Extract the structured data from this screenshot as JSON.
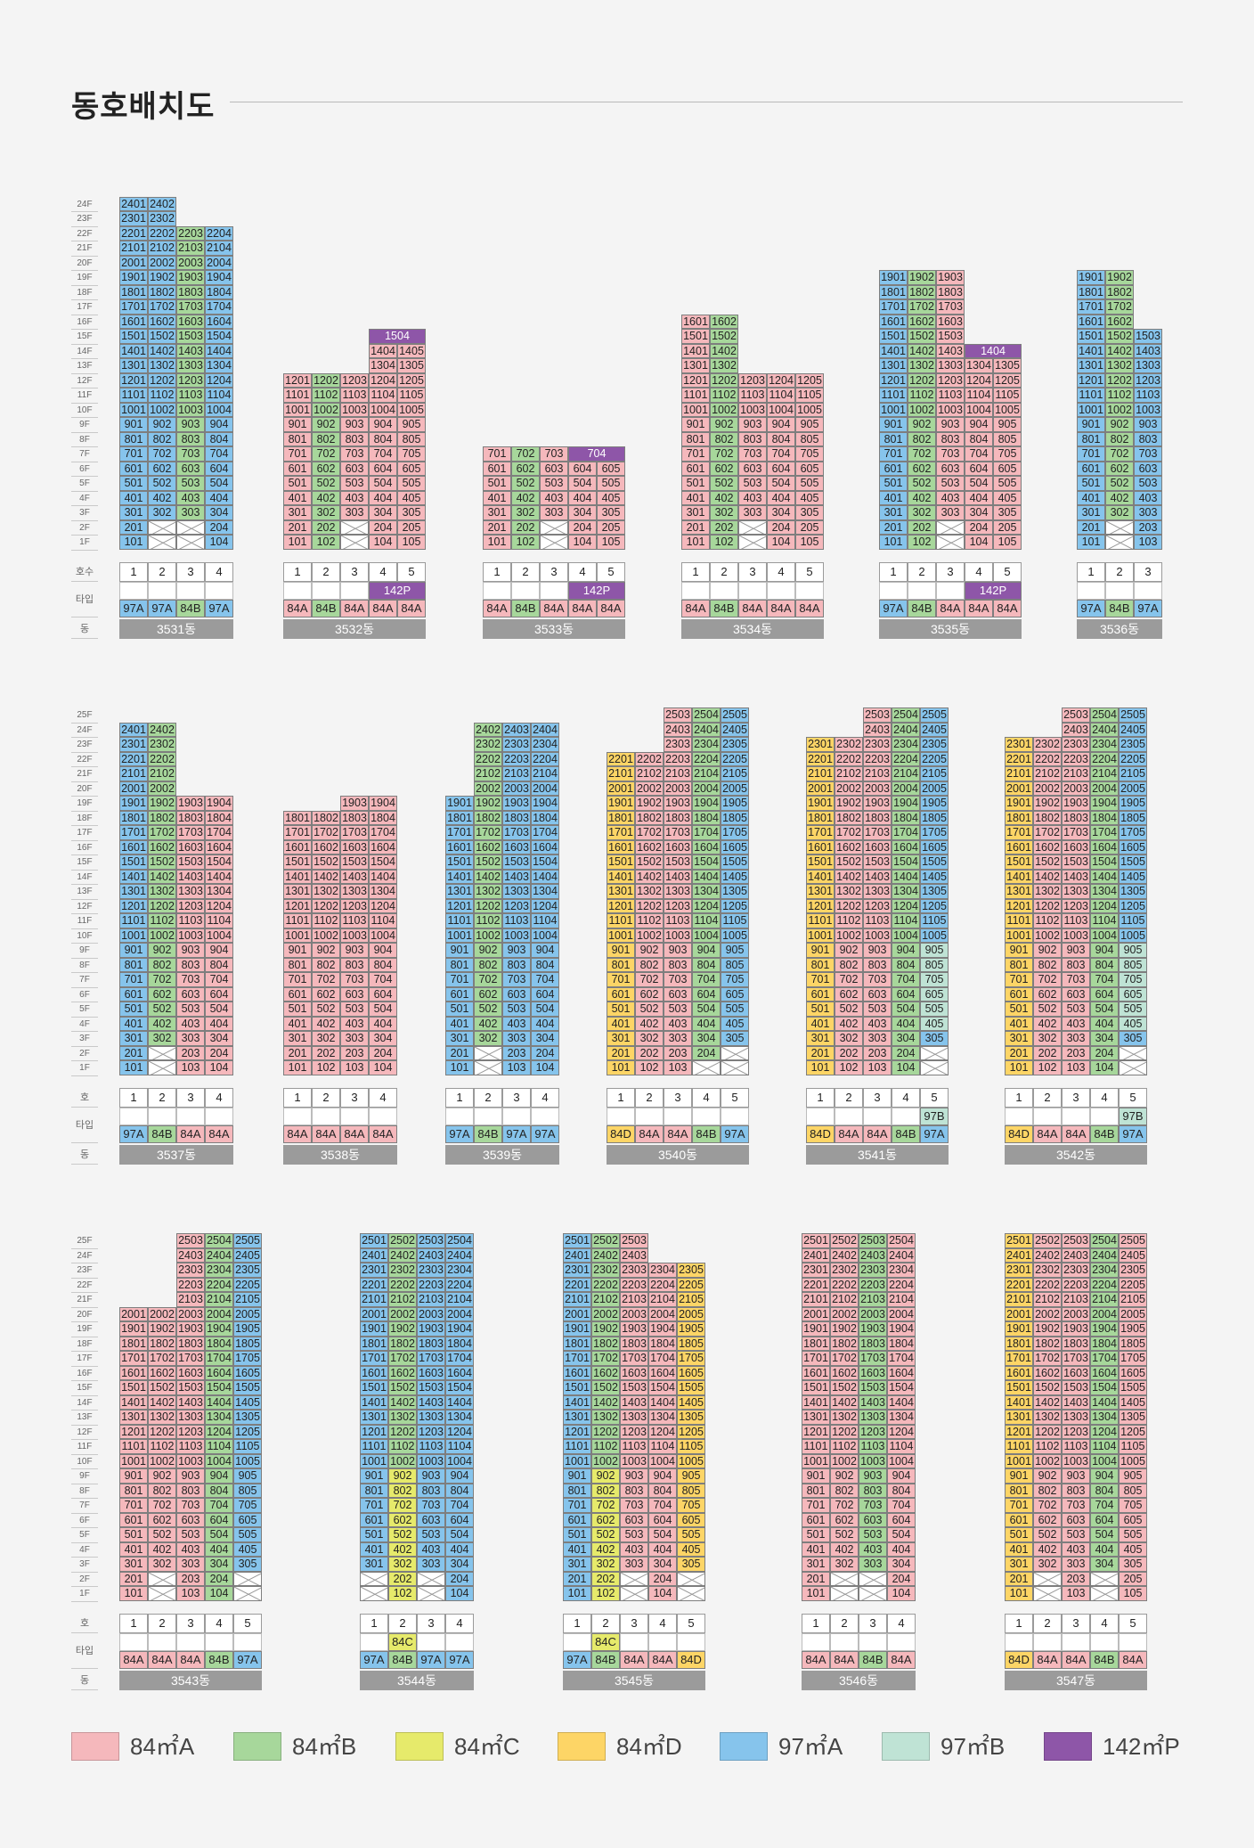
{
  "page": {
    "title": "동호배치도"
  },
  "labels": {
    "ho_row_1": "호수",
    "ho_row": "호",
    "type_row": "타입",
    "dong_row": "동"
  },
  "colors": {
    "84A": "#f5b8bc",
    "84B": "#a7d79b",
    "84C": "#e6ea6b",
    "84D": "#fdd566",
    "97A": "#86c4ec",
    "97B": "#bfe3d5",
    "142P": "#8e56a8"
  },
  "legend": [
    {
      "code": "84A",
      "label": "84㎡A"
    },
    {
      "code": "84B",
      "label": "84㎡B"
    },
    {
      "code": "84C",
      "label": "84㎡C"
    },
    {
      "code": "84D",
      "label": "84㎡D"
    },
    {
      "code": "97A",
      "label": "97㎡A"
    },
    {
      "code": "97B",
      "label": "97㎡B"
    },
    {
      "code": "142P",
      "label": "142㎡P"
    }
  ],
  "sections": [
    {
      "max_floor": 24,
      "ho_label": "호수",
      "buildings": [
        {
          "name": "3531동",
          "lines": [
            {
              "ho": 1,
              "type": "97A",
              "top": 24,
              "missing": []
            },
            {
              "ho": 2,
              "type": "97A",
              "top": 24,
              "missing": [
                1,
                2
              ]
            },
            {
              "ho": 3,
              "type": "84B",
              "top": 22,
              "missing": [
                1,
                2
              ]
            },
            {
              "ho": 4,
              "type": "97A",
              "top": 22,
              "missing": []
            }
          ]
        },
        {
          "name": "3532동",
          "lines": [
            {
              "ho": 1,
              "type": "84A",
              "top": 12,
              "missing": []
            },
            {
              "ho": 2,
              "type": "84B",
              "top": 12,
              "missing": []
            },
            {
              "ho": 3,
              "type": "84A",
              "top": 12,
              "missing": [
                1,
                2
              ]
            },
            {
              "ho": 4,
              "type": "84A",
              "top": 14,
              "missing": []
            },
            {
              "ho": 5,
              "type": "84A",
              "top": 14,
              "missing": []
            }
          ],
          "penthouse": {
            "label": "1504",
            "floor": 15,
            "type": "142P",
            "from": 4,
            "span": 2
          },
          "top_type": {
            "label": "142P",
            "from": 4,
            "span": 2
          }
        },
        {
          "name": "3533동",
          "lines": [
            {
              "ho": 1,
              "type": "84A",
              "top": 7,
              "missing": []
            },
            {
              "ho": 2,
              "type": "84B",
              "top": 7,
              "missing": []
            },
            {
              "ho": 3,
              "type": "84A",
              "top": 7,
              "missing": [
                1,
                2
              ]
            },
            {
              "ho": 4,
              "type": "84A",
              "top": 6,
              "missing": []
            },
            {
              "ho": 5,
              "type": "84A",
              "top": 6,
              "missing": []
            }
          ],
          "penthouse": {
            "label": "704",
            "floor": 7,
            "type": "142P",
            "from": 4,
            "span": 2
          },
          "top_type": {
            "label": "142P",
            "from": 4,
            "span": 2
          }
        },
        {
          "name": "3534동",
          "lines": [
            {
              "ho": 1,
              "type": "84A",
              "top": 16,
              "missing": []
            },
            {
              "ho": 2,
              "type": "84B",
              "top": 16,
              "missing": []
            },
            {
              "ho": 3,
              "type": "84A",
              "top": 12,
              "missing": [
                1,
                2
              ]
            },
            {
              "ho": 4,
              "type": "84A",
              "top": 12,
              "missing": []
            },
            {
              "ho": 5,
              "type": "84A",
              "top": 12,
              "missing": []
            }
          ]
        },
        {
          "name": "3535동",
          "lines": [
            {
              "ho": 1,
              "type": "97A",
              "top": 19,
              "missing": []
            },
            {
              "ho": 2,
              "type": "84B",
              "top": 19,
              "missing": []
            },
            {
              "ho": 3,
              "type": "84A",
              "top": 19,
              "missing": [
                1,
                2
              ]
            },
            {
              "ho": 4,
              "type": "84A",
              "top": 13,
              "missing": []
            },
            {
              "ho": 5,
              "type": "84A",
              "top": 13,
              "missing": []
            }
          ],
          "penthouse": {
            "label": "1404",
            "floor": 14,
            "type": "142P",
            "from": 4,
            "span": 2
          },
          "top_type": {
            "label": "142P",
            "from": 4,
            "span": 2
          }
        },
        {
          "name": "3536동",
          "lines": [
            {
              "ho": 1,
              "type": "97A",
              "top": 19,
              "missing": []
            },
            {
              "ho": 2,
              "type": "84B",
              "top": 19,
              "missing": [
                1,
                2
              ]
            },
            {
              "ho": 3,
              "type": "97A",
              "top": 15,
              "missing": []
            }
          ]
        }
      ]
    },
    {
      "max_floor": 25,
      "ho_label": "호",
      "buildings": [
        {
          "name": "3537동",
          "lines": [
            {
              "ho": 1,
              "type": "97A",
              "top": 24,
              "missing": []
            },
            {
              "ho": 2,
              "type": "84B",
              "top": 24,
              "missing": [
                1,
                2
              ]
            },
            {
              "ho": 3,
              "type": "84A",
              "top": 19,
              "missing": []
            },
            {
              "ho": 4,
              "type": "84A",
              "top": 19,
              "missing": []
            }
          ]
        },
        {
          "name": "3538동",
          "lines": [
            {
              "ho": 1,
              "type": "84A",
              "top": 18,
              "missing": []
            },
            {
              "ho": 2,
              "type": "84A",
              "top": 18,
              "missing": []
            },
            {
              "ho": 3,
              "type": "84A",
              "top": 19,
              "missing": []
            },
            {
              "ho": 4,
              "type": "84A",
              "top": 19,
              "missing": []
            }
          ]
        },
        {
          "name": "3539동",
          "lines": [
            {
              "ho": 1,
              "type": "97A",
              "top": 19,
              "missing": []
            },
            {
              "ho": 2,
              "type": "84B",
              "top": 24,
              "missing": [
                1,
                2
              ]
            },
            {
              "ho": 3,
              "type": "97A",
              "top": 24,
              "missing": []
            },
            {
              "ho": 4,
              "type": "97A",
              "top": 24,
              "missing": []
            }
          ]
        },
        {
          "name": "3540동",
          "lines": [
            {
              "ho": 1,
              "type": "84D",
              "top": 22,
              "missing": []
            },
            {
              "ho": 2,
              "type": "84A",
              "top": 22,
              "missing": []
            },
            {
              "ho": 3,
              "type": "84A",
              "top": 25,
              "missing": []
            },
            {
              "ho": 4,
              "type": "84B",
              "top": 25,
              "missing": [
                1
              ]
            },
            {
              "ho": 5,
              "type": "97A",
              "top": 25,
              "missing": [
                1,
                2
              ]
            }
          ]
        },
        {
          "name": "3541동",
          "lines": [
            {
              "ho": 1,
              "type": "84D",
              "top": 23,
              "missing": []
            },
            {
              "ho": 2,
              "type": "84A",
              "top": 23,
              "missing": []
            },
            {
              "ho": 3,
              "type": "84A",
              "top": 25,
              "missing": []
            },
            {
              "ho": 4,
              "type": "84B",
              "top": 25,
              "missing": []
            },
            {
              "ho": 5,
              "type": "97A",
              "top": 25,
              "missing": [
                1,
                2
              ],
              "low_type": "97B",
              "low_top": 9,
              "low_from": 4
            }
          ],
          "top_type": {
            "label": "97B",
            "from": 5,
            "span": 1,
            "type": "97B"
          }
        },
        {
          "name": "3542동",
          "lines": [
            {
              "ho": 1,
              "type": "84D",
              "top": 23,
              "missing": []
            },
            {
              "ho": 2,
              "type": "84A",
              "top": 23,
              "missing": []
            },
            {
              "ho": 3,
              "type": "84A",
              "top": 25,
              "missing": []
            },
            {
              "ho": 4,
              "type": "84B",
              "top": 25,
              "missing": []
            },
            {
              "ho": 5,
              "type": "97A",
              "top": 25,
              "missing": [
                1,
                2
              ],
              "low_type": "97B",
              "low_top": 9,
              "low_from": 4
            }
          ],
          "top_type": {
            "label": "97B",
            "from": 5,
            "span": 1,
            "type": "97B"
          }
        }
      ]
    },
    {
      "max_floor": 25,
      "ho_label": "호",
      "buildings": [
        {
          "name": "3543동",
          "lines": [
            {
              "ho": 1,
              "type": "84A",
              "top": 20,
              "missing": []
            },
            {
              "ho": 2,
              "type": "84A",
              "top": 20,
              "missing": [
                1,
                2
              ]
            },
            {
              "ho": 3,
              "type": "84A",
              "top": 25,
              "missing": []
            },
            {
              "ho": 4,
              "type": "84B",
              "top": 25,
              "missing": []
            },
            {
              "ho": 5,
              "type": "97A",
              "top": 25,
              "missing": [
                1,
                2
              ]
            }
          ]
        },
        {
          "name": "3544동",
          "lines": [
            {
              "ho": 1,
              "type": "97A",
              "top": 25,
              "missing": [
                1,
                2
              ]
            },
            {
              "ho": 2,
              "type": "84B",
              "top": 25,
              "missing": [],
              "low_type": "84C",
              "low_top": 9,
              "low_from": 1
            },
            {
              "ho": 3,
              "type": "97A",
              "top": 25,
              "missing": [
                1,
                2
              ]
            },
            {
              "ho": 4,
              "type": "97A",
              "top": 25,
              "missing": []
            }
          ],
          "top_type": {
            "label": "84C",
            "from": 2,
            "span": 1,
            "type": "84C"
          }
        },
        {
          "name": "3545동",
          "lines": [
            {
              "ho": 1,
              "type": "97A",
              "top": 25,
              "missing": []
            },
            {
              "ho": 2,
              "type": "84B",
              "top": 25,
              "missing": [],
              "low_type": "84C",
              "low_top": 9,
              "low_from": 1
            },
            {
              "ho": 3,
              "type": "84A",
              "top": 25,
              "missing": [
                1,
                2
              ]
            },
            {
              "ho": 4,
              "type": "84A",
              "top": 23,
              "missing": []
            },
            {
              "ho": 5,
              "type": "84D",
              "top": 23,
              "missing": [
                1,
                2
              ]
            }
          ],
          "top_type": {
            "label": "84C",
            "from": 2,
            "span": 1,
            "type": "84C"
          }
        },
        {
          "name": "3546동",
          "lines": [
            {
              "ho": 1,
              "type": "84A",
              "top": 25,
              "missing": []
            },
            {
              "ho": 2,
              "type": "84A",
              "top": 25,
              "missing": [
                1,
                2
              ]
            },
            {
              "ho": 3,
              "type": "84B",
              "top": 25,
              "missing": [
                1,
                2
              ]
            },
            {
              "ho": 4,
              "type": "84A",
              "top": 25,
              "missing": []
            }
          ]
        },
        {
          "name": "3547동",
          "lines": [
            {
              "ho": 1,
              "type": "84D",
              "top": 25,
              "missing": []
            },
            {
              "ho": 2,
              "type": "84A",
              "top": 25,
              "missing": [
                1,
                2
              ]
            },
            {
              "ho": 3,
              "type": "84A",
              "top": 25,
              "missing": []
            },
            {
              "ho": 4,
              "type": "84B",
              "top": 25,
              "missing": [
                1,
                2
              ]
            },
            {
              "ho": 5,
              "type": "84A",
              "top": 25,
              "missing": []
            }
          ]
        }
      ]
    }
  ]
}
